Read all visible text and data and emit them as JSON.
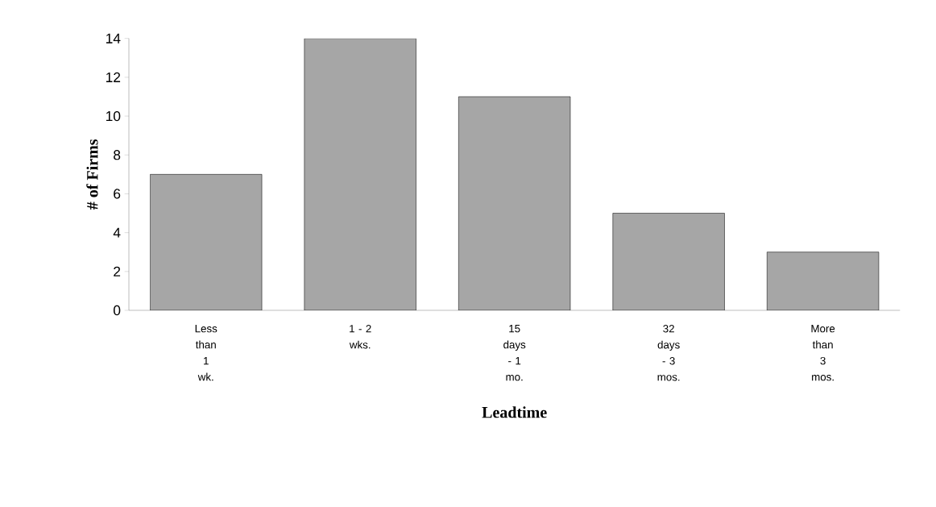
{
  "chart_data": {
    "type": "bar",
    "xlabel": "Leadtime",
    "ylabel": "# of Firms",
    "categories": [
      "Less than 1 wk.",
      "1 - 2 wks.",
      "15 days - 1 mo.",
      "32 days - 3 mos.",
      "More than 3 mos."
    ],
    "values": [
      7,
      14,
      11,
      5,
      3
    ],
    "color": "#a6a6a6",
    "ylim": [
      0,
      14
    ],
    "yticks": [
      0,
      2,
      4,
      6,
      8,
      10,
      12,
      14
    ],
    "grid": false
  }
}
